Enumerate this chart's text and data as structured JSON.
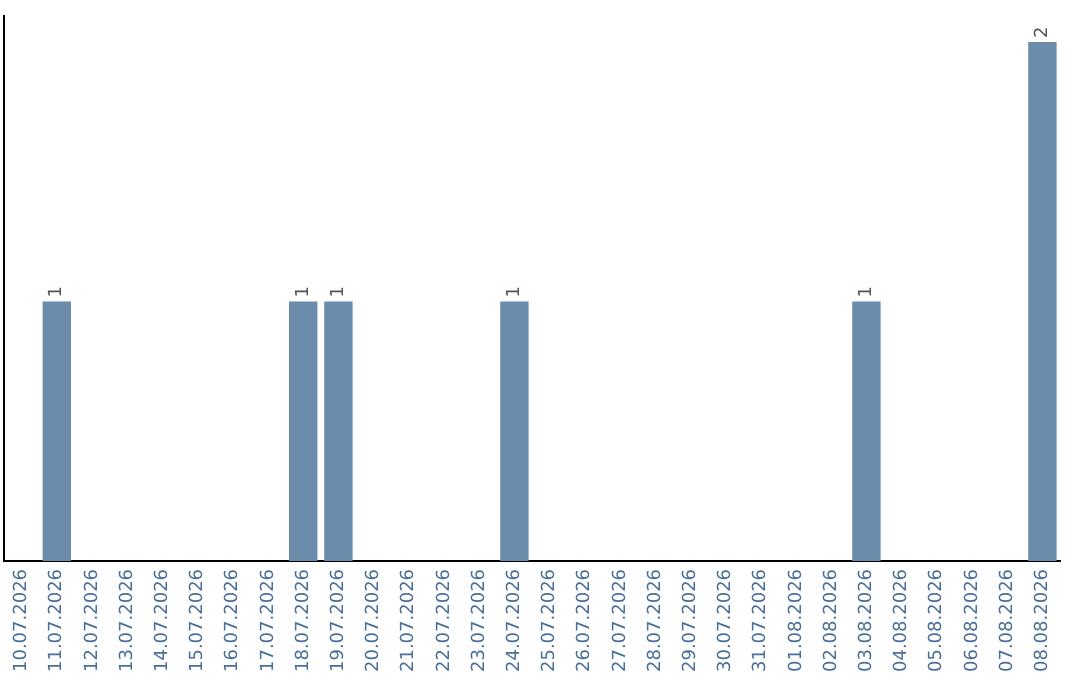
{
  "chart_data": {
    "type": "bar",
    "categories": [
      "10.07.2026",
      "11.07.2026",
      "12.07.2026",
      "13.07.2026",
      "14.07.2026",
      "15.07.2026",
      "16.07.2026",
      "17.07.2026",
      "18.07.2026",
      "19.07.2026",
      "20.07.2026",
      "21.07.2026",
      "22.07.2026",
      "23.07.2026",
      "24.07.2026",
      "25.07.2026",
      "26.07.2026",
      "27.07.2026",
      "28.07.2026",
      "29.07.2026",
      "30.07.2026",
      "31.07.2026",
      "01.08.2026",
      "02.08.2026",
      "03.08.2026",
      "04.08.2026",
      "05.08.2026",
      "06.08.2026",
      "07.08.2026",
      "08.08.2026"
    ],
    "values": [
      0,
      1,
      0,
      0,
      0,
      0,
      0,
      0,
      1,
      1,
      0,
      0,
      0,
      0,
      1,
      0,
      0,
      0,
      0,
      0,
      0,
      0,
      0,
      0,
      1,
      0,
      0,
      0,
      0,
      2
    ],
    "value_labels": [
      null,
      "1",
      null,
      null,
      null,
      null,
      null,
      null,
      "1",
      "1",
      null,
      null,
      null,
      null,
      "1",
      null,
      null,
      null,
      null,
      null,
      null,
      null,
      null,
      null,
      "1",
      null,
      null,
      null,
      null,
      "2"
    ],
    "color": "#6b8cab",
    "ylim": [
      0,
      2.1
    ],
    "grid": false,
    "legend": false,
    "tick_labels": "x"
  }
}
